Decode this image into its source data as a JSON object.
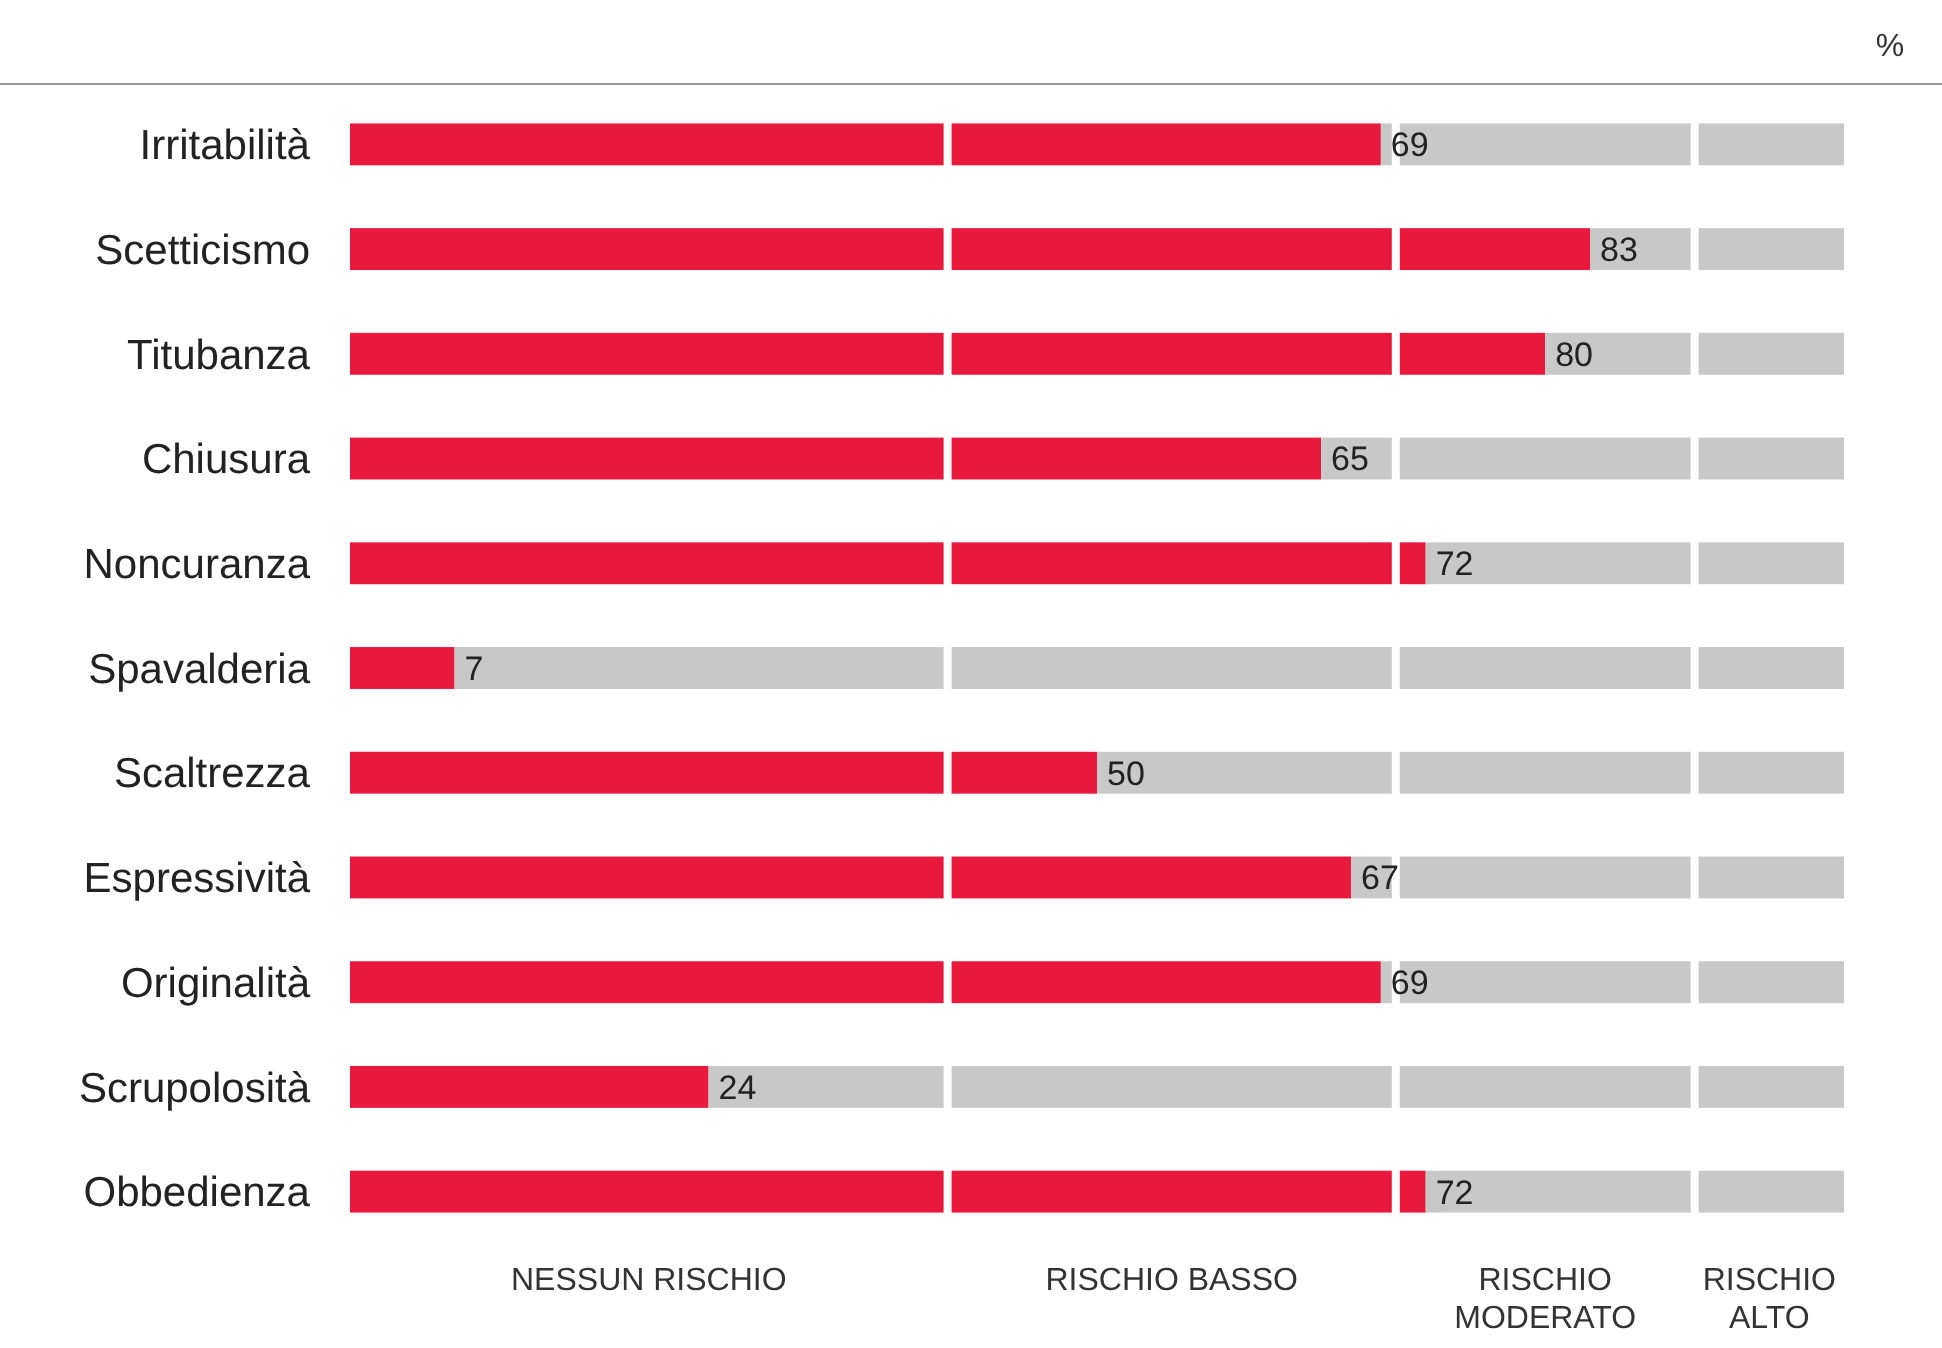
{
  "chart_data": {
    "type": "bar",
    "orientation": "horizontal",
    "stacked": true,
    "categories": [
      "Irritabilità",
      "Scetticismo",
      "Titubanza",
      "Chiusura",
      "Noncuranza",
      "Spavalderia",
      "Scaltrezza",
      "Espressività",
      "Originalità",
      "Scrupolosità",
      "Obbedienza"
    ],
    "series": [
      {
        "color": "#e8193c",
        "values": [
          69,
          83,
          80,
          65,
          72,
          7,
          50,
          67,
          69,
          24,
          72
        ],
        "value_labels": [
          "69",
          "83",
          "80",
          "65",
          "72",
          "7",
          "50",
          "67",
          "69",
          "24",
          "72"
        ]
      },
      {
        "color": "#c8c8c8",
        "values": [
          31,
          17,
          20,
          35,
          28,
          93,
          50,
          33,
          31,
          76,
          28
        ]
      }
    ],
    "ref_lines": [
      {
        "axis": "x",
        "value": 40,
        "color": "#ffffff"
      },
      {
        "axis": "x",
        "value": 70,
        "color": "#ffffff"
      },
      {
        "axis": "x",
        "value": 90,
        "color": "#ffffff"
      }
    ],
    "annotations": [
      "%",
      "NESSUN RISCHIO",
      "RISCHIO BASSO",
      "RISCHIO MODERATO",
      "RISCHIO ALTO"
    ]
  }
}
